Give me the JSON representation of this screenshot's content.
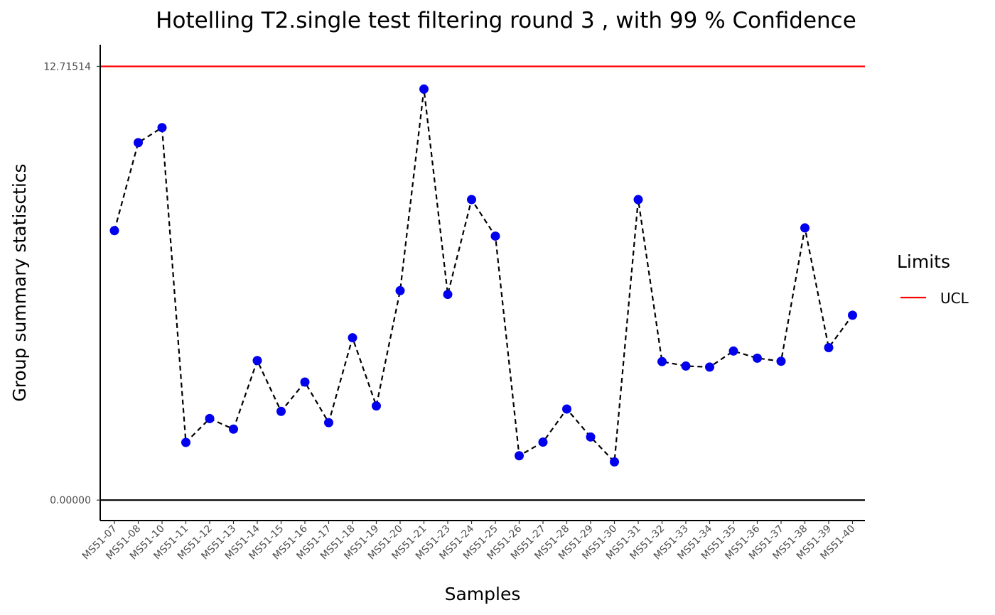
{
  "chart_data": {
    "type": "line",
    "title": "Hotelling  T2.single  test filtering round  3 , with  99 % Confidence",
    "xlabel": "Samples",
    "ylabel": "Group summary statisctics",
    "categories": [
      "MS51-07",
      "MS51-08",
      "MS51-10",
      "MS51-11",
      "MS51-12",
      "MS51-13",
      "MS51-14",
      "MS51-15",
      "MS51-16",
      "MS51-17",
      "MS51-18",
      "MS51-19",
      "MS51-20",
      "MS51-21",
      "MS51-23",
      "MS51-24",
      "MS51-25",
      "MS51-26",
      "MS51-27",
      "MS51-28",
      "MS51-29",
      "MS51-30",
      "MS51-31",
      "MS51-32",
      "MS51-33",
      "MS51-34",
      "MS51-35",
      "MS51-36",
      "MS51-37",
      "MS51-38",
      "MS51-39",
      "MS51-40"
    ],
    "series": [
      {
        "values": [
          7.9,
          10.48,
          10.92,
          1.69,
          2.39,
          2.08,
          4.09,
          2.6,
          3.46,
          2.27,
          4.76,
          2.76,
          6.14,
          12.05,
          6.03,
          8.81,
          7.74,
          1.3,
          1.7,
          2.67,
          1.85,
          1.12,
          8.81,
          4.06,
          3.93,
          3.9,
          4.37,
          4.16,
          4.07,
          7.98,
          4.47,
          5.42
        ],
        "color": "#0000ee",
        "line_color": "#000000",
        "line_style": "dashed"
      }
    ],
    "hlines": [
      {
        "name": "UCL",
        "value": 12.71514,
        "color": "#ff0000"
      },
      {
        "value": 0.0,
        "color": "#000000"
      }
    ],
    "yticks": [
      {
        "value": 0.0,
        "label": "0.00000"
      },
      {
        "value": 12.71514,
        "label": "12.71514"
      }
    ],
    "ylim": [
      -0.6,
      13.35
    ],
    "grid": false,
    "legend": {
      "title": "Limits",
      "position": "right",
      "entries": [
        {
          "label": "UCL",
          "color": "#ff0000"
        }
      ]
    }
  }
}
